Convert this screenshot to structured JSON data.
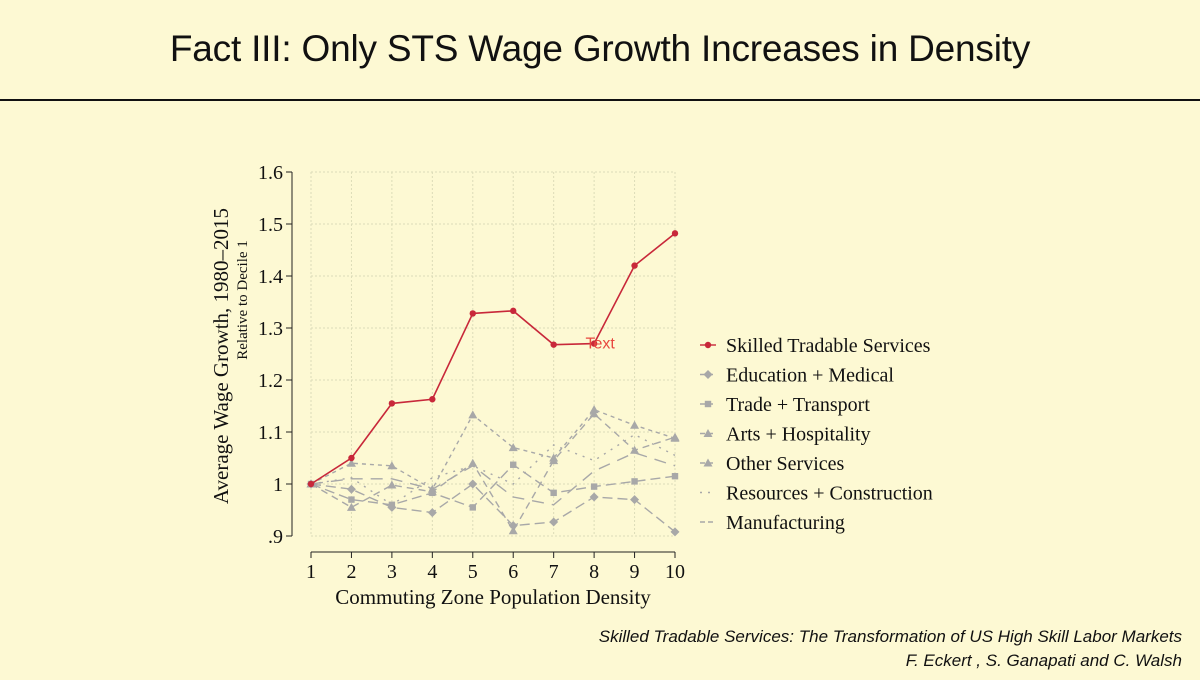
{
  "slide": {
    "title": "Fact III: Only STS Wage Growth Increases in Density",
    "footer_line1": "Skilled Tradable Services: The Transformation of US High Skill Labor Markets",
    "footer_line2": "F. Eckert , S. Ganapati and C. Walsh"
  },
  "chart_data": {
    "type": "line",
    "ylabel": "Average Wage Growth, 1980–2015",
    "ylabel_sub": "Relative to Decile 1",
    "xlabel": "Commuting Zone Population Density",
    "x": [
      1,
      2,
      3,
      4,
      5,
      6,
      7,
      8,
      9,
      10
    ],
    "xlim": [
      1,
      10
    ],
    "ylim": [
      0.9,
      1.6
    ],
    "yticks": [
      0.9,
      1.0,
      1.1,
      1.2,
      1.3,
      1.4,
      1.5,
      1.6
    ],
    "ytick_labels": [
      ".9",
      "1",
      "1.1",
      "1.2",
      "1.3",
      "1.4",
      "1.5",
      "1.6"
    ],
    "xtick_labels": [
      "1",
      "2",
      "3",
      "4",
      "5",
      "6",
      "7",
      "8",
      "9",
      "10"
    ],
    "grid": true,
    "annotation": {
      "text": "Text",
      "x": 8,
      "y": 1.27,
      "color": "#e8473f"
    },
    "legend_position": "right",
    "series": [
      {
        "name": "Skilled Tradable Services",
        "color": "#c8283a",
        "marker": "circle",
        "dash": "solid",
        "values": [
          1.0,
          1.05,
          1.155,
          1.163,
          1.328,
          1.333,
          1.268,
          1.27,
          1.42,
          1.482
        ]
      },
      {
        "name": "Education + Medical",
        "color": "#a8a8a8",
        "marker": "diamond",
        "dash": "long",
        "values": [
          1.0,
          0.99,
          0.955,
          0.945,
          1.0,
          0.92,
          0.927,
          0.975,
          0.97,
          0.908
        ]
      },
      {
        "name": "Trade + Transport",
        "color": "#a8a8a8",
        "marker": "square",
        "dash": "long",
        "values": [
          1.0,
          0.97,
          0.96,
          0.983,
          0.955,
          1.037,
          0.983,
          0.995,
          1.005,
          1.015
        ]
      },
      {
        "name": "Arts + Hospitality",
        "color": "#a8a8a8",
        "marker": "triangle",
        "dash": "medium",
        "values": [
          1.0,
          0.955,
          0.998,
          0.985,
          1.04,
          0.91,
          1.045,
          1.135,
          1.065,
          1.09
        ]
      },
      {
        "name": "Other Services",
        "color": "#a8a8a8",
        "marker": "triangle",
        "dash": "short",
        "values": [
          1.0,
          1.04,
          1.035,
          0.99,
          1.133,
          1.07,
          1.05,
          1.143,
          1.113,
          1.088
        ]
      },
      {
        "name": "Resources + Construction",
        "color": "#a8a8a8",
        "marker": "none",
        "dash": "dot",
        "values": [
          1.0,
          1.012,
          0.96,
          1.012,
          1.035,
          1.0,
          1.075,
          1.045,
          1.095,
          1.055
        ]
      },
      {
        "name": "Manufacturing",
        "color": "#a8a8a8",
        "marker": "none",
        "dash": "longdot",
        "values": [
          1.0,
          1.01,
          1.01,
          0.99,
          1.035,
          0.975,
          0.96,
          1.025,
          1.06,
          1.035
        ]
      }
    ]
  }
}
